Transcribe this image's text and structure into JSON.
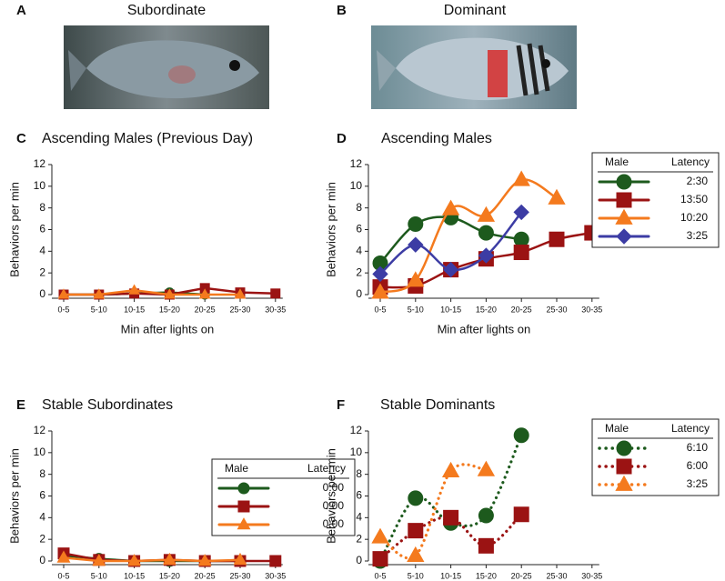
{
  "panels": [
    {
      "letter": "A",
      "caption": "Subordinate"
    },
    {
      "letter": "B",
      "caption": "Dominant"
    }
  ],
  "chart_data": [
    {
      "type": "line",
      "panel": "C",
      "title": "Ascending Males (Previous Day)",
      "ylabel": "Behaviors per  min",
      "xlabel": "Min after lights on",
      "categories": [
        "0-5",
        "5-10",
        "10-15",
        "15-20",
        "20-25",
        "25-30",
        "30-35"
      ],
      "ylim": [
        0,
        12
      ],
      "yticks": [
        0,
        2,
        4,
        6,
        8,
        10,
        12
      ],
      "smooth": false,
      "line_style": "solid",
      "marker_size": 5,
      "series": [
        {
          "color": "#1d5a1d",
          "marker": "circle",
          "values": [
            0,
            0,
            0.1,
            0.2,
            0,
            null,
            null
          ]
        },
        {
          "color": "#9b1313",
          "marker": "square",
          "values": [
            0,
            0,
            0.1,
            0,
            0.6,
            0.2,
            0.1
          ]
        },
        {
          "color": "#f47a1e",
          "marker": "triangle",
          "values": [
            0,
            0,
            0.4,
            0,
            0,
            0,
            null
          ]
        }
      ]
    },
    {
      "type": "line",
      "panel": "D",
      "title": "Ascending Males",
      "ylabel": "Behaviors per  min",
      "xlabel": "Min after lights on",
      "categories": [
        "0-5",
        "5-10",
        "10-15",
        "15-20",
        "20-25",
        "25-30",
        "30-35"
      ],
      "ylim": [
        0,
        12
      ],
      "yticks": [
        0,
        2,
        4,
        6,
        8,
        10,
        12
      ],
      "smooth": true,
      "line_style": "solid",
      "marker_size": 8,
      "legend": "outside-right",
      "legend_headers": [
        "Male",
        "Latency"
      ],
      "series": [
        {
          "name": "2:30",
          "color": "#1d5a1d",
          "marker": "circle",
          "values": [
            2.9,
            6.5,
            7.1,
            5.7,
            5.1,
            null,
            null
          ]
        },
        {
          "name": "13:50",
          "color": "#9b1313",
          "marker": "square",
          "values": [
            0.7,
            0.8,
            2.3,
            3.3,
            3.9,
            5.1,
            5.7
          ]
        },
        {
          "name": "10:20",
          "color": "#f47a1e",
          "marker": "triangle",
          "values": [
            0.2,
            1.3,
            7.9,
            7.3,
            10.6,
            8.9,
            null
          ]
        },
        {
          "name": "3:25",
          "color": "#3c3ca4",
          "marker": "diamond",
          "values": [
            1.9,
            4.6,
            2.3,
            3.6,
            7.6,
            null,
            null
          ]
        }
      ]
    },
    {
      "type": "line",
      "panel": "E",
      "title": "Stable Subordinates",
      "ylabel": "Behaviors per  min",
      "xlabel": "Min after lights on",
      "categories": [
        "0-5",
        "5-10",
        "10-15",
        "15-20",
        "20-25",
        "25-30",
        "30-35"
      ],
      "ylim": [
        0,
        12
      ],
      "yticks": [
        0,
        2,
        4,
        6,
        8,
        10,
        12
      ],
      "smooth": false,
      "line_style": "solid",
      "marker_size": 6,
      "legend": "upper-right",
      "legend_headers": [
        "Male",
        "Latency"
      ],
      "series": [
        {
          "name": "0:00",
          "color": "#1d5a1d",
          "marker": "circle",
          "values": [
            0.5,
            0.2,
            0,
            0,
            0,
            0,
            null
          ]
        },
        {
          "name": "0:00",
          "color": "#9b1313",
          "marker": "square",
          "values": [
            0.7,
            0.1,
            0,
            0.1,
            0,
            0,
            0
          ]
        },
        {
          "name": "0:00",
          "color": "#f47a1e",
          "marker": "triangle",
          "values": [
            0.3,
            0,
            0,
            0.1,
            0,
            0.1,
            null
          ]
        }
      ]
    },
    {
      "type": "line",
      "panel": "F",
      "title": "Stable Dominants",
      "ylabel": "Behaviors per  min",
      "xlabel": "Min after lights on",
      "categories": [
        "0-5",
        "5-10",
        "10-15",
        "15-20",
        "20-25",
        "25-30",
        "30-35"
      ],
      "ylim": [
        0,
        12
      ],
      "yticks": [
        0,
        2,
        4,
        6,
        8,
        10,
        12
      ],
      "smooth": true,
      "line_style": "dotted",
      "marker_size": 8,
      "legend": "outside-right",
      "legend_headers": [
        "Male",
        "Latency"
      ],
      "series": [
        {
          "name": "6:10",
          "color": "#1d5a1d",
          "marker": "circle",
          "values": [
            0,
            5.8,
            3.5,
            4.2,
            11.6,
            null,
            null
          ]
        },
        {
          "name": "6:00",
          "color": "#9b1313",
          "marker": "square",
          "values": [
            0.2,
            2.8,
            4,
            1.4,
            4.3,
            null,
            null
          ]
        },
        {
          "name": "3:25",
          "color": "#f47a1e",
          "marker": "triangle",
          "values": [
            2.2,
            0.5,
            8.3,
            8.4,
            null,
            null,
            null
          ]
        }
      ]
    }
  ]
}
